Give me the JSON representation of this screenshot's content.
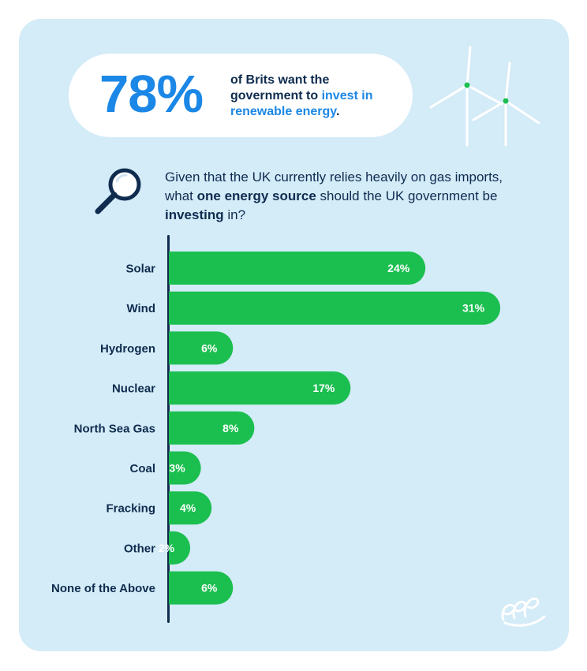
{
  "header": {
    "stat_number": "78%",
    "stat_line1": "of Brits want the",
    "stat_line2": "government to",
    "stat_highlight_1": "invest",
    "stat_highlight_2": "in renewable energy",
    "stat_end": "."
  },
  "question": {
    "part1": "Given that the UK currently relies heavily on gas imports, what ",
    "bold1": "one energy source",
    "part2": " should the UK government be ",
    "bold2": "investing",
    "part3": " in?"
  },
  "icons": [
    "wind-turbine-icon",
    "magnifier-icon",
    "brand-logo-icon"
  ],
  "colors": {
    "card_background": "#d4ebf8",
    "bar": "#1bbf4f",
    "accent_blue": "#1b87e6",
    "text_dark": "#0f2c4f"
  },
  "chart_data": {
    "type": "bar",
    "orientation": "horizontal",
    "categories": [
      "Solar",
      "Wind",
      "Hydrogen",
      "Nuclear",
      "North Sea Gas",
      "Coal",
      "Fracking",
      "Other",
      "None of the Above"
    ],
    "values": [
      24,
      31,
      6,
      17,
      8,
      3,
      4,
      2,
      6
    ],
    "labels": [
      "24%",
      "31%",
      "6%",
      "17%",
      "8%",
      "3%",
      "4%",
      "2%",
      "6%"
    ],
    "unit": "%",
    "grid": false,
    "legend": "none"
  }
}
